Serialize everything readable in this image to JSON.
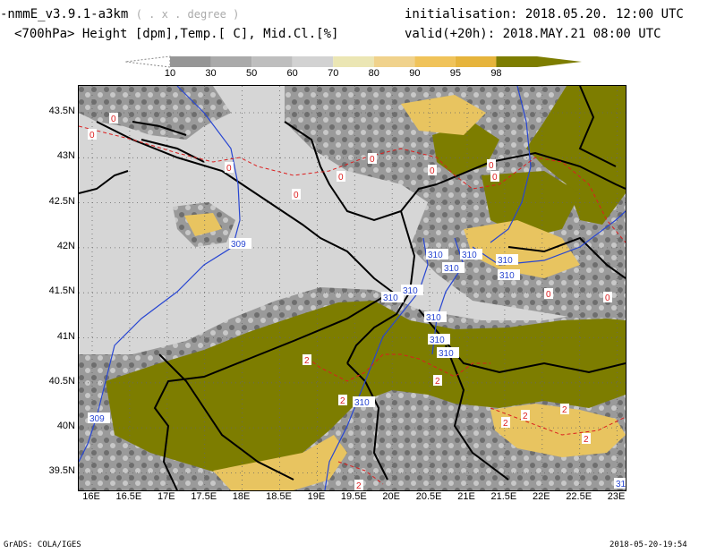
{
  "header": {
    "model": "-nmmE_v3.9.1-a3km",
    "projection": "( . x . degree )",
    "fields": "<700hPa> Height [dpm],Temp.[ C], Mid.Cl.[%]",
    "initialisation": "initialisation: 2018.05.20.   12:00 UTC",
    "valid": "valid(+20h): 2018.MAY.21  08:00 UTC"
  },
  "legend": {
    "labels": [
      "10",
      "30",
      "50",
      "60",
      "70",
      "80",
      "90",
      "95",
      "98"
    ],
    "colors": [
      "#ffffff",
      "#969696",
      "#aaaaaa",
      "#bebebe",
      "#d2d2d2",
      "#ebe6b4",
      "#f0d28c",
      "#f0c35a",
      "#e6b43c",
      "#7d7d00"
    ]
  },
  "axes": {
    "lat_labels": [
      "43.5N",
      "43N",
      "42.5N",
      "42N",
      "41.5N",
      "41N",
      "40.5N",
      "40N",
      "39.5N"
    ],
    "lon_labels": [
      "16E",
      "16.5E",
      "17E",
      "17.5E",
      "18E",
      "18.5E",
      "19E",
      "19.5E",
      "20E",
      "20.5E",
      "21E",
      "21.5E",
      "22E",
      "22.5E",
      "23E"
    ]
  },
  "map": {
    "height_labels": [
      "309",
      "309",
      "310",
      "310",
      "310",
      "310",
      "310",
      "310",
      "310",
      "310",
      "310",
      "310",
      "310",
      "31"
    ],
    "temp_labels": [
      "0",
      "0",
      "0",
      "0",
      "0",
      "0",
      "0",
      "0",
      "0",
      "0",
      "0",
      "2",
      "2",
      "2",
      "2",
      "2",
      "2",
      "2",
      "2"
    ],
    "colors": {
      "olive": "#7d7d00",
      "sea": "#d6d6d6",
      "cloud_mid": "#aaaaaa",
      "cloud_dark": "#8c8c8c",
      "yellow": "#e8c460",
      "height_contour": "#2846d2",
      "temp_contour": "#dc1e1e"
    }
  },
  "footer": {
    "left": "GrADS: COLA/IGES",
    "right": "2018-05-20-19:54"
  }
}
